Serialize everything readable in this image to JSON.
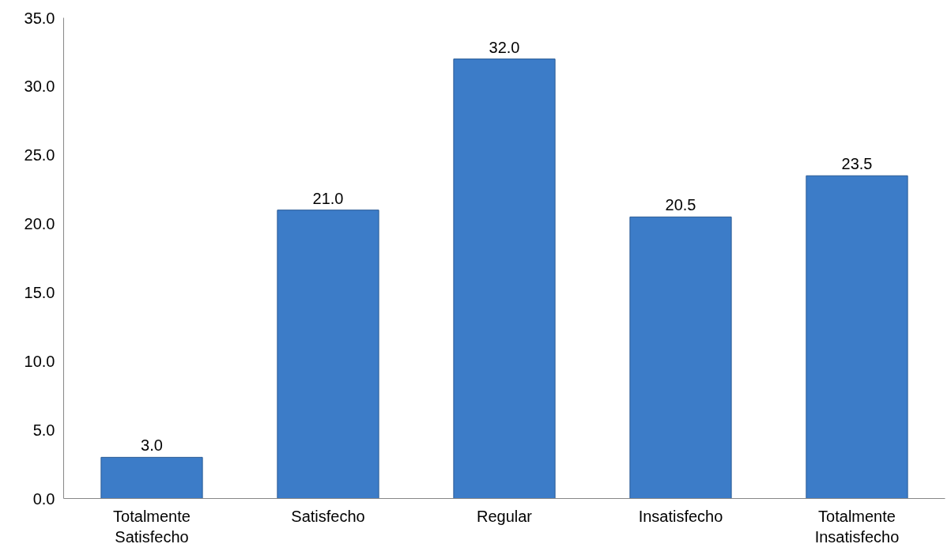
{
  "chart_data": {
    "type": "bar",
    "categories": [
      "Totalmente\nSatisfecho",
      "Satisfecho",
      "Regular",
      "Insatisfecho",
      "Totalmente\nInsatisfecho"
    ],
    "values": [
      3.0,
      21.0,
      32.0,
      20.5,
      23.5
    ],
    "color": "#3c7cc8",
    "ylim": [
      0,
      35
    ],
    "yticks": [
      {
        "value": 0,
        "label": "0.0"
      },
      {
        "value": 5,
        "label": "5.0"
      },
      {
        "value": 10,
        "label": "10.0"
      },
      {
        "value": 15,
        "label": "15.0"
      },
      {
        "value": 20,
        "label": "20.0"
      },
      {
        "value": 25,
        "label": "25.0"
      },
      {
        "value": 30,
        "label": "30.0"
      },
      {
        "value": 35,
        "label": "35.0"
      }
    ],
    "value_labels": [
      "3.0",
      "21.0",
      "32.0",
      "20.5",
      "23.5"
    ],
    "grid": false
  }
}
